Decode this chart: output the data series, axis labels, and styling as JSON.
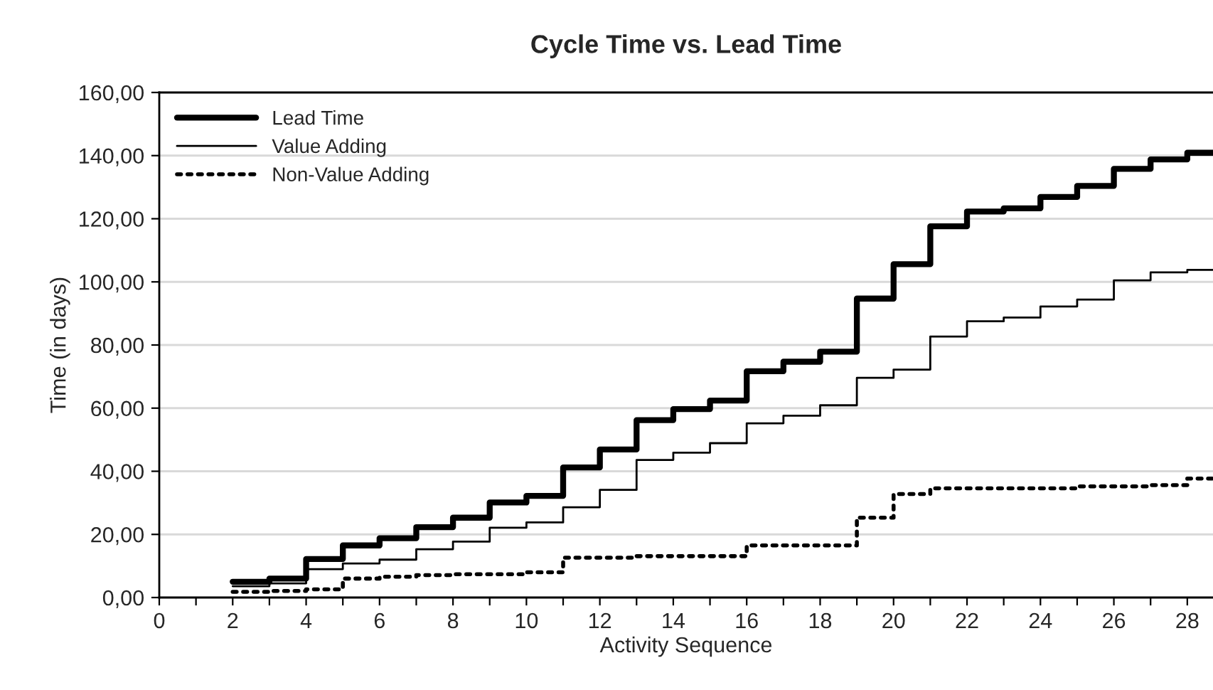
{
  "chart_data": {
    "type": "step",
    "title": "Cycle Time vs. Lead Time",
    "xlabel": "Activity Sequence",
    "ylabel": "Time (in days)",
    "x": [
      2,
      3,
      4,
      5,
      6,
      7,
      8,
      9,
      10,
      11,
      12,
      13,
      14,
      15,
      16,
      17,
      18,
      19,
      20,
      21,
      22,
      23,
      24,
      25,
      26,
      27,
      28,
      28.7
    ],
    "series": [
      {
        "name": "Lead Time",
        "color": "#000000",
        "line_style": "solid",
        "values": [
          5.0,
          6.0,
          12.2,
          16.5,
          18.8,
          22.3,
          25.3,
          30.1,
          32.2,
          41.2,
          46.9,
          56.2,
          59.7,
          62.4,
          71.7,
          74.7,
          77.9,
          94.7,
          105.6,
          117.6,
          122.3,
          123.3,
          126.9,
          130.4,
          135.8,
          138.8,
          140.9,
          140.9
        ]
      },
      {
        "name": "Value Adding",
        "color": "#000000",
        "line_style": "solid",
        "values": [
          3.6,
          4.5,
          9.0,
          10.8,
          12.0,
          15.3,
          17.7,
          22.1,
          23.8,
          28.6,
          34.1,
          43.6,
          45.9,
          48.9,
          55.2,
          57.6,
          60.9,
          69.6,
          72.2,
          82.7,
          87.5,
          88.7,
          92.2,
          94.4,
          100.5,
          103.0,
          103.8,
          103.8
        ]
      },
      {
        "name": "Non-Value Adding",
        "color": "#000000",
        "line_style": "dotted",
        "values": [
          1.8,
          2.1,
          2.6,
          6.0,
          6.6,
          7.1,
          7.4,
          7.4,
          8.0,
          12.6,
          12.6,
          13.1,
          13.1,
          13.1,
          16.5,
          16.5,
          16.5,
          25.3,
          32.8,
          34.6,
          34.6,
          34.6,
          34.6,
          35.2,
          35.2,
          35.6,
          37.7,
          37.7
        ]
      }
    ],
    "xlim": [
      0,
      28.7
    ],
    "xticks": [
      0,
      {
        "value": 1,
        "label": null
      },
      2,
      {
        "value": 3,
        "label": null
      },
      4,
      {
        "value": 5,
        "label": null
      },
      6,
      {
        "value": 7,
        "label": null
      },
      8,
      {
        "value": 9,
        "label": null
      },
      10,
      {
        "value": 11,
        "label": null
      },
      12,
      {
        "value": 13,
        "label": null
      },
      14,
      {
        "value": 15,
        "label": null
      },
      16,
      {
        "value": 17,
        "label": null
      },
      18,
      {
        "value": 19,
        "label": null
      },
      20,
      {
        "value": 21,
        "label": null
      },
      22,
      {
        "value": 23,
        "label": null
      },
      24,
      {
        "value": 25,
        "label": null
      },
      26,
      {
        "value": 27,
        "label": null
      },
      28
    ],
    "ylim": [
      0,
      160
    ],
    "yticks": [
      {
        "value": 0,
        "label": "0,00"
      },
      {
        "value": 20,
        "label": "20,00"
      },
      {
        "value": 40,
        "label": "40,00"
      },
      {
        "value": 60,
        "label": "60,00"
      },
      {
        "value": 80,
        "label": "80,00"
      },
      {
        "value": 100,
        "label": "100,00"
      },
      {
        "value": 120,
        "label": "120,00"
      },
      {
        "value": 140,
        "label": "140,00"
      },
      {
        "value": 160,
        "label": "160,00"
      }
    ],
    "grid": "y",
    "legend": "top left"
  }
}
